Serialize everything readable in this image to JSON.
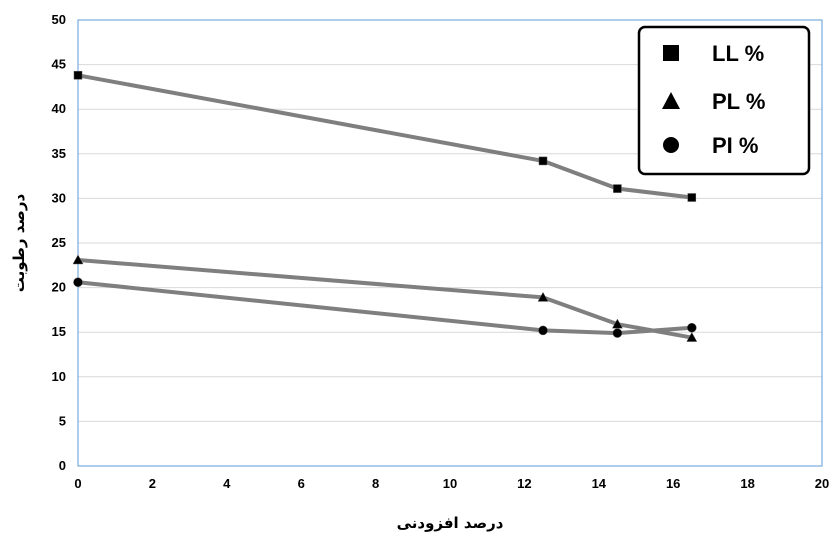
{
  "chart_data": {
    "type": "line",
    "title": "",
    "xlabel": "درصد افزودنی",
    "ylabel": "درصد رطوبت",
    "xlim": [
      0,
      20
    ],
    "ylim": [
      0,
      50
    ],
    "x_ticks": [
      0,
      2,
      4,
      6,
      8,
      10,
      12,
      14,
      16,
      18,
      20
    ],
    "y_ticks": [
      0,
      5,
      10,
      15,
      20,
      25,
      30,
      35,
      40,
      45,
      50
    ],
    "grid": "horizontal",
    "legend_position": "top-right",
    "line_color": "#7f7f7f",
    "marker_color": "#000000",
    "series": [
      {
        "name": "LL %",
        "marker": "square",
        "x": [
          0,
          12.5,
          14.5,
          16.5
        ],
        "y": [
          43.8,
          34.2,
          31.1,
          30.1
        ]
      },
      {
        "name": "PL %",
        "marker": "triangle",
        "x": [
          0,
          12.5,
          14.5,
          16.5
        ],
        "y": [
          23.1,
          18.9,
          15.9,
          14.4
        ]
      },
      {
        "name": "PI %",
        "marker": "circle",
        "x": [
          0,
          12.5,
          14.5,
          16.5
        ],
        "y": [
          20.6,
          15.2,
          14.9,
          15.5
        ]
      }
    ]
  }
}
